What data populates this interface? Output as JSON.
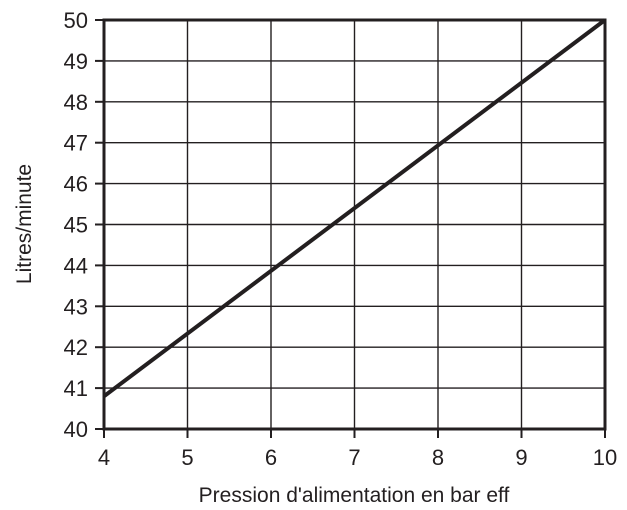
{
  "chart_data": {
    "type": "line",
    "title": "",
    "xlabel": "Pression d'alimentation en bar eff",
    "ylabel": "Litres/minute",
    "xlim": [
      4,
      10
    ],
    "ylim": [
      40,
      50
    ],
    "xticks": [
      4,
      5,
      6,
      7,
      8,
      9,
      10
    ],
    "yticks": [
      40,
      41,
      42,
      43,
      44,
      45,
      46,
      47,
      48,
      49,
      50
    ],
    "grid": true,
    "series": [
      {
        "x": [
          4,
          10
        ],
        "y": [
          40.8,
          50
        ]
      }
    ],
    "colors": {
      "line": "#231f20",
      "grid": "#231f20",
      "background": "#ffffff"
    }
  }
}
